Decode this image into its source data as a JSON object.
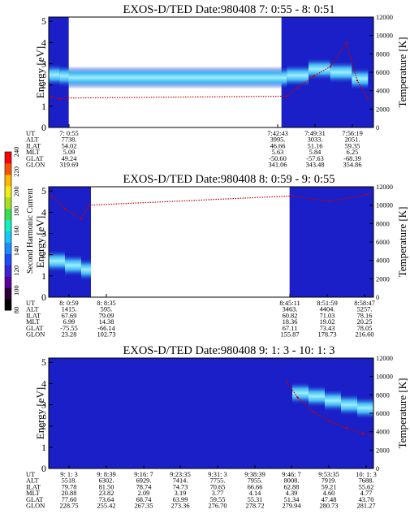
{
  "colors": {
    "background_deep_blue": "#1a1fc8",
    "band_cyan": "#3fb8f4",
    "band_core": "#9feefe",
    "temperature_trace": "#c80000"
  },
  "colorbar": {
    "label": "Second Harmonic Current",
    "ticks": [
      "80",
      "100",
      "120",
      "140",
      "160",
      "180",
      "200",
      "220",
      "240"
    ],
    "colors": [
      "#000000",
      "#2a0038",
      "#5a00a0",
      "#3a24d8",
      "#1d4cff",
      "#1a8cff",
      "#17c8ff",
      "#13f0c0",
      "#34e050",
      "#a8e020",
      "#f0ec10",
      "#ffb800",
      "#ff5200",
      "#ff0000"
    ]
  },
  "panels": [
    {
      "title": "EXOS-D/TED   Date:980408  7: 0:55 - 8: 0:51",
      "ylabel": "Energy [eV]",
      "y2label": "Temperature [K]",
      "y_ticks": [
        "0",
        "1",
        "2",
        "3",
        "4",
        "5"
      ],
      "y2_ticks": [
        "0",
        "2000",
        "4000",
        "6000",
        "8000",
        "10000",
        "12000"
      ],
      "info_labels": [
        "UT",
        "ALT",
        "ILAT",
        "MLT",
        "GLAT",
        "GLON"
      ],
      "info_columns": [
        {
          "values": [
            "7: 0:55",
            "7738.",
            "54.02",
            "5.09",
            "49.24",
            "319.69"
          ]
        },
        {
          "values": [
            "7:42:43",
            "3995.",
            "46.66",
            "5.63",
            "-50.60",
            "341.06"
          ]
        },
        {
          "values": [
            "7:49:31",
            "3033.",
            "51.16",
            "5.84",
            "-57.63",
            "343.48"
          ]
        },
        {
          "values": [
            "7:56:19",
            "2051.",
            "59.35",
            "6.25",
            "-68.39",
            "354.86"
          ]
        }
      ]
    },
    {
      "title": "EXOS-D/TED   Date:980408  8: 0:59 - 9: 0:55",
      "ylabel": "Energy [eV]",
      "y2label": "Temperature [K]",
      "y_ticks": [
        "0",
        "1",
        "2",
        "3",
        "4",
        "5"
      ],
      "y2_ticks": [
        "0",
        "2000",
        "4000",
        "6000",
        "8000",
        "10000",
        "12000"
      ],
      "info_labels": [
        "UT",
        "ALT",
        "ILAT",
        "MLT",
        "GLAT",
        "GLON"
      ],
      "info_columns": [
        {
          "values": [
            "8: 0:59",
            "1415.",
            "67.69",
            "6.99",
            "-75.55",
            "23.28"
          ]
        },
        {
          "values": [
            "8: 8:35",
            "595.",
            "79.09",
            "14.38",
            "-66.14",
            "102.73"
          ]
        },
        {
          "values": [
            "8:45:11",
            "3463.",
            "60.82",
            "18.36",
            "67.11",
            "155.87"
          ]
        },
        {
          "values": [
            "8:51:59",
            "4404.",
            "71.03",
            "19.02",
            "73.43",
            "178.73"
          ]
        },
        {
          "values": [
            "8:58:47",
            "5257.",
            "78.16",
            "20.25",
            "78.05",
            "216.60"
          ]
        }
      ]
    },
    {
      "title": "EXOS-D/TED   Date:980408  9: 1: 3 - 10: 1: 3",
      "ylabel": "Energy [eV]",
      "y2label": "Temperature [K]",
      "y_ticks": [
        "0",
        "1",
        "2",
        "3",
        "4",
        "5"
      ],
      "y2_ticks": [
        "0",
        "2000",
        "4000",
        "6000",
        "8000",
        "10000",
        "12000"
      ],
      "info_labels": [
        "UT",
        "ALT",
        "ILAT",
        "MLT",
        "GLAT",
        "GLON"
      ],
      "info_columns": [
        {
          "values": [
            "9: 1: 3",
            "5518.",
            "79.78",
            "20.88",
            "77.60",
            "228.75"
          ]
        },
        {
          "values": [
            "9: 8:39",
            "6302.",
            "81.50",
            "23.82",
            "73.64",
            "255.42"
          ]
        },
        {
          "values": [
            "9:16: 7",
            "6929.",
            "78.74",
            "2.09",
            "68.74",
            "267.35"
          ]
        },
        {
          "values": [
            "9:23:35",
            "7414.",
            "74.73",
            "3.19",
            "63.99",
            "273.36"
          ]
        },
        {
          "values": [
            "9:31: 3",
            "7755.",
            "70.65",
            "3.77",
            "59.55",
            "276.70"
          ]
        },
        {
          "values": [
            "9:38:39",
            "7955.",
            "66.66",
            "4.14",
            "55.31",
            "278.72"
          ]
        },
        {
          "values": [
            "9:46: 7",
            "8008.",
            "62.88",
            "4.39",
            "51.34",
            "279.94"
          ]
        },
        {
          "values": [
            "9:53:35",
            "7919.",
            "59.21",
            "4.60",
            "47.48",
            "280.73"
          ]
        },
        {
          "values": [
            "10: 1: 3",
            "7688.",
            "55.62",
            "4.77",
            "43.70",
            "281.27"
          ]
        }
      ]
    }
  ],
  "chart_data": [
    {
      "type": "heatmap",
      "title": "EXOS-D/TED   Date:980408  7: 0:55 - 8: 0:51",
      "xlabel": "UT",
      "ylabel": "Energy [eV]",
      "y2label": "Temperature [K]",
      "x_range": [
        "7: 0:55",
        "8: 0:51"
      ],
      "ylim": [
        0,
        5.2
      ],
      "y2lim": [
        0,
        12000
      ],
      "data_intervals_min": [
        [
          0,
          3.7
        ],
        [
          43,
          60
        ]
      ],
      "band_center_ev": [
        [
          0,
          2.5
        ],
        [
          2,
          2.45
        ],
        [
          3.7,
          2.4
        ],
        [
          44,
          2.3
        ],
        [
          48,
          2.6
        ],
        [
          52,
          2.9
        ],
        [
          56,
          2.3
        ],
        [
          59,
          2.3
        ]
      ],
      "temperature_k": [
        [
          0.5,
          3300
        ],
        [
          2,
          3100
        ],
        [
          3.5,
          3200
        ],
        [
          44,
          3400
        ],
        [
          46,
          4300
        ],
        [
          49,
          5600
        ],
        [
          52,
          6600
        ],
        [
          55,
          9200
        ],
        [
          57,
          5100
        ],
        [
          59,
          3100
        ]
      ]
    },
    {
      "type": "heatmap",
      "title": "EXOS-D/TED   Date:980408  8: 0:59 - 9: 0:55",
      "xlabel": "UT",
      "ylabel": "Energy [eV]",
      "y2label": "Temperature [K]",
      "x_range": [
        "8: 0:59",
        "9: 0:55"
      ],
      "ylim": [
        0,
        5.2
      ],
      "y2lim": [
        0,
        12000
      ],
      "data_intervals_min": [
        [
          0,
          7.8
        ],
        [
          44.5,
          60
        ]
      ],
      "band_center_ev": [
        [
          0,
          1.8
        ],
        [
          3,
          1.6
        ],
        [
          6,
          1.4
        ],
        [
          7.8,
          1.2
        ]
      ],
      "temperature_k": [
        [
          0.5,
          11000
        ],
        [
          3,
          9600
        ],
        [
          6,
          8500
        ],
        [
          7.5,
          10000
        ],
        [
          45,
          11000
        ],
        [
          52,
          10400
        ],
        [
          59,
          11200
        ]
      ]
    },
    {
      "type": "heatmap",
      "title": "EXOS-D/TED   Date:980408  9: 1: 3 - 10: 1: 3",
      "xlabel": "UT",
      "ylabel": "Energy [eV]",
      "y2label": "Temperature [K]",
      "x_range": [
        "9: 1: 3",
        "10: 1: 3"
      ],
      "ylim": [
        0,
        5.2
      ],
      "y2lim": [
        0,
        12000
      ],
      "data_intervals_min": [
        [
          0,
          60
        ]
      ],
      "band_center_ev": [
        [
          45,
          3.6
        ],
        [
          48,
          3.5
        ],
        [
          51,
          3.3
        ],
        [
          54,
          3.1
        ],
        [
          57,
          2.9
        ],
        [
          60,
          2.8
        ]
      ],
      "temperature_k": [
        [
          44,
          9400
        ],
        [
          46,
          7700
        ],
        [
          49,
          6100
        ],
        [
          52,
          5100
        ],
        [
          55,
          4400
        ],
        [
          58,
          3800
        ],
        [
          60,
          3500
        ]
      ]
    }
  ]
}
